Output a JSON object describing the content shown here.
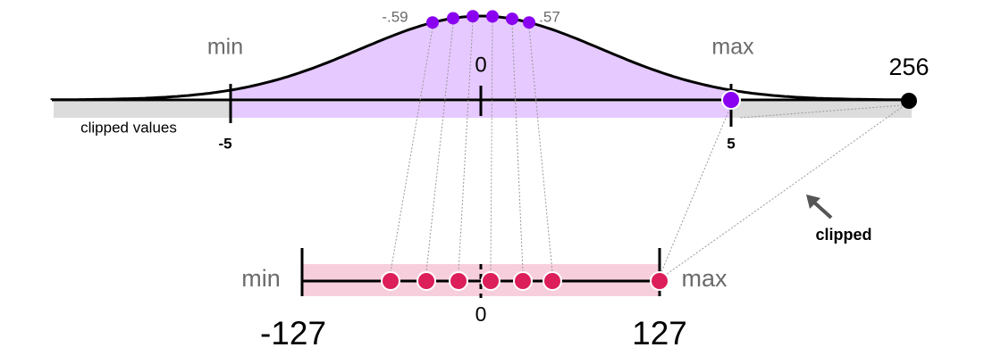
{
  "top_axis": {
    "min_label": "min",
    "max_label": "max",
    "zero": "0",
    "min_tick": "-5",
    "max_tick": "5",
    "outlier": "256",
    "first_value": "-.59",
    "last_value": ".57",
    "clipped_region": "clipped values"
  },
  "bottom_axis": {
    "min_label": "min",
    "max_label": "max",
    "zero": "0",
    "min_tick": "-127",
    "max_tick": "127"
  },
  "annotation": "clipped"
}
